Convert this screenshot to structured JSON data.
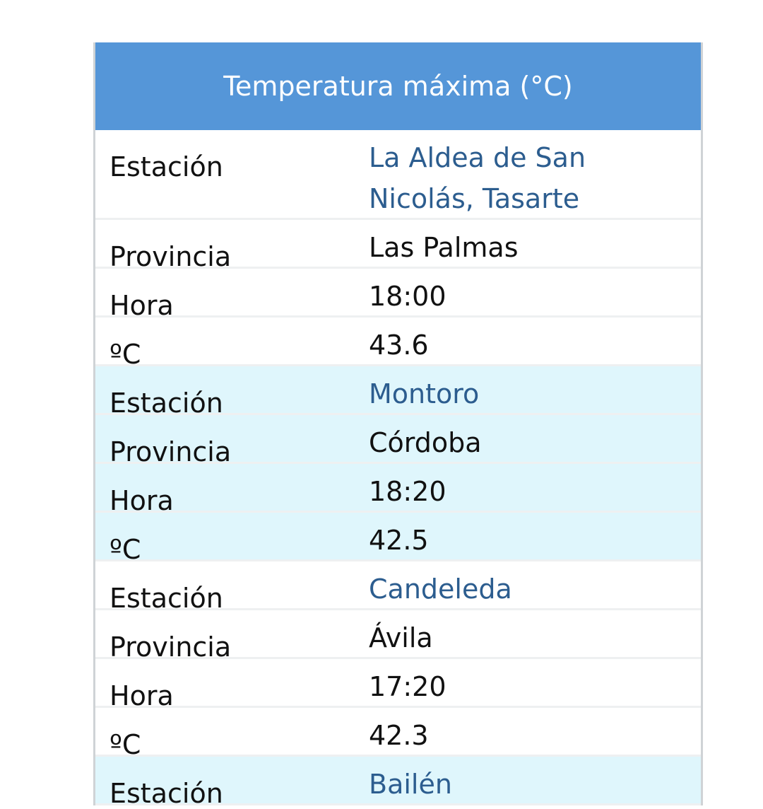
{
  "table": {
    "title": "Temperatura máxima (°C)",
    "labels": {
      "station": "Estación",
      "province": "Provincia",
      "hour": "Hora",
      "temp": "ºC"
    },
    "rows": [
      {
        "station": "La Aldea de San Nicolás, Tasarte",
        "province": "Las Palmas",
        "hour": "18:00",
        "temp": "43.6"
      },
      {
        "station": "Montoro",
        "province": "Córdoba",
        "hour": "18:20",
        "temp": "42.5"
      },
      {
        "station": "Candeleda",
        "province": "Ávila",
        "hour": "17:20",
        "temp": "42.3"
      },
      {
        "station": "Bailén"
      }
    ],
    "colors": {
      "header": "#5596d8",
      "alt_row": "#dff6fc",
      "link": "#2c5d8f"
    }
  }
}
